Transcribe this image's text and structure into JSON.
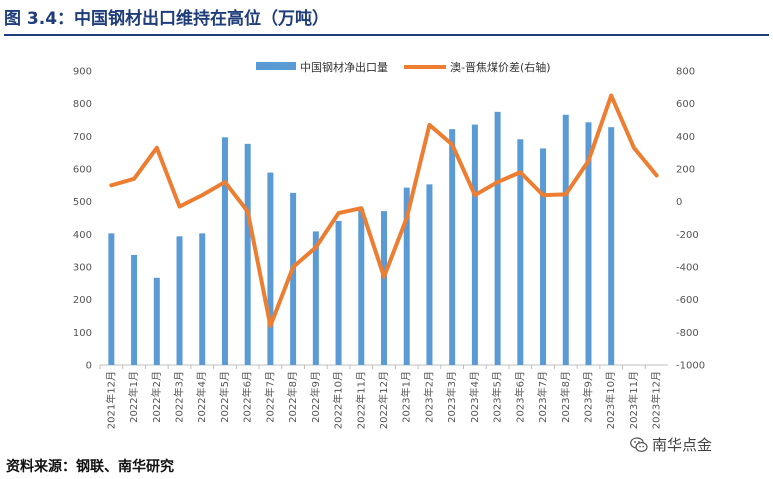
{
  "title": "图 3.4：中国钢材出口维持在高位（万吨）",
  "source": "资料来源：钢联、南华研究",
  "watermark": "南华点金",
  "colors": {
    "bar": "#5b9bd5",
    "line": "#ed7d31",
    "title": "#1f3d7a"
  },
  "chart_data": {
    "type": "bar+line",
    "categories": [
      "2021年12月",
      "2022年1月",
      "2022年2月",
      "2022年3月",
      "2022年4月",
      "2022年5月",
      "2022年6月",
      "2022年7月",
      "2022年8月",
      "2022年9月",
      "2022年10月",
      "2022年11月",
      "2022年12月",
      "2023年1月",
      "2023年2月",
      "2023年3月",
      "2023年4月",
      "2023年5月",
      "2023年6月",
      "2023年7月",
      "2023年8月",
      "2023年9月",
      "2023年10月",
      "2023年11月",
      "2023年12月"
    ],
    "series": [
      {
        "name": "中国钢材净出口量",
        "type": "bar",
        "axis": "left",
        "values": [
          403,
          337,
          267,
          394,
          403,
          697,
          677,
          589,
          527,
          409,
          441,
          479,
          471,
          543,
          553,
          722,
          736,
          775,
          691,
          663,
          766,
          743,
          728,
          null,
          null
        ]
      },
      {
        "name": "澳-晋焦煤价差(右轴)",
        "type": "line",
        "axis": "right",
        "values": [
          100,
          140,
          330,
          -30,
          40,
          120,
          -60,
          -760,
          -400,
          -280,
          -70,
          -40,
          -460,
          -100,
          470,
          350,
          40,
          120,
          180,
          40,
          45,
          250,
          650,
          330,
          160
        ]
      }
    ],
    "y_left": {
      "min": 0,
      "max": 900,
      "ticks": [
        0,
        100,
        200,
        300,
        400,
        500,
        600,
        700,
        800,
        900
      ]
    },
    "y_right": {
      "min": -1000,
      "max": 800,
      "ticks": [
        -1000,
        -800,
        -600,
        -400,
        -200,
        0,
        200,
        400,
        600,
        800
      ]
    },
    "legend_position": "top-center"
  }
}
